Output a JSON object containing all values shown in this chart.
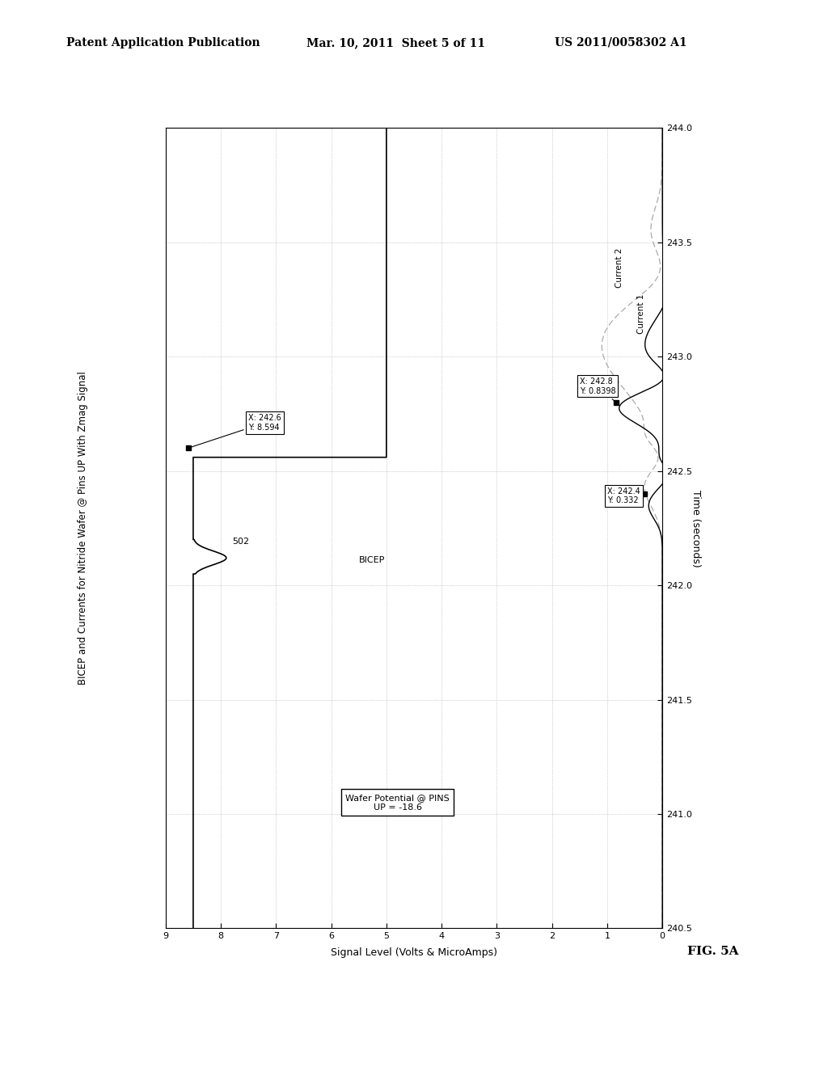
{
  "header_left": "Patent Application Publication",
  "header_mid": "Mar. 10, 2011  Sheet 5 of 11",
  "header_right": "US 2011/0058302 A1",
  "fig_label": "FIG. 5A",
  "title": "BICEP and Currents for Nitride Wafer @ Pins UP With Zmag Signal",
  "xlabel_rotated": "Time (seconds)",
  "ylabel_rotated": "Signal Level (Volts & MicroAmps)",
  "time_min": 240.5,
  "time_max": 244.0,
  "sig_min": 0,
  "sig_max": 9,
  "time_ticks": [
    240.5,
    241.0,
    241.5,
    242.0,
    242.5,
    243.0,
    243.5,
    244.0
  ],
  "sig_ticks": [
    0,
    1,
    2,
    3,
    4,
    5,
    6,
    7,
    8,
    9
  ],
  "background_color": "#ffffff",
  "line_color_bicep": "#000000",
  "line_color_current1": "#000000",
  "line_color_current2": "#aaaaaa"
}
